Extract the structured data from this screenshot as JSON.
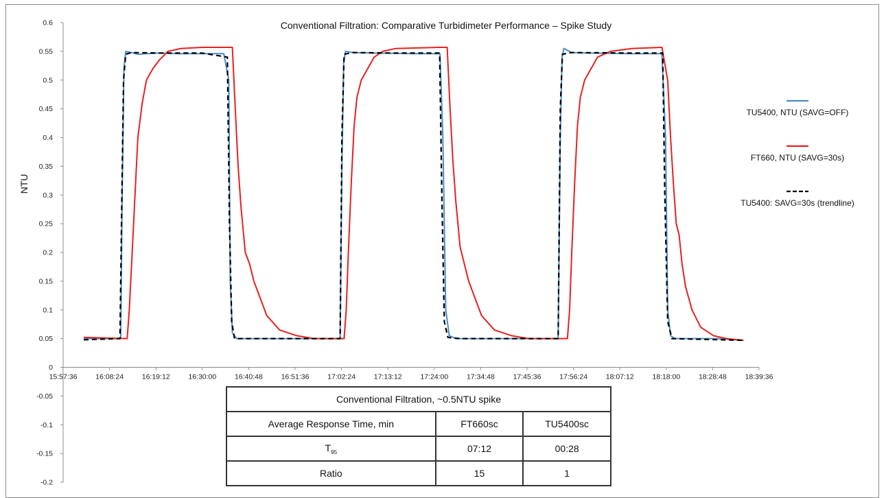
{
  "chart_data": {
    "type": "line",
    "title": "Conventional Filtration: Comparative Turbidimeter Performance  – Spike Study",
    "xlabel": "",
    "ylabel": "NTU",
    "ylim": [
      -0.2,
      0.6
    ],
    "yticks": [
      -0.2,
      -0.15,
      -0.1,
      -0.05,
      0,
      0.05,
      0.1,
      0.15,
      0.2,
      0.25,
      0.3,
      0.35,
      0.4,
      0.45,
      0.5,
      0.55,
      0.6
    ],
    "ytick_labels": [
      "-0.2",
      "-0.15",
      "-0.1",
      "-0.05",
      "0",
      "0.05",
      "0.1",
      "0.15",
      "0.2",
      "0.25",
      "0.3",
      "0.35",
      "0.4",
      "0.45",
      "0.5",
      "0.55",
      "0.6"
    ],
    "xtick_labels": [
      "15:57:36",
      "16:08:24",
      "16:19:12",
      "16:30:00",
      "16:40:48",
      "16:51:36",
      "17:02:24",
      "17:13:12",
      "17:24:00",
      "17:34:48",
      "17:45:36",
      "17:56:24",
      "18:07:12",
      "18:18:00",
      "18:28:48",
      "18:39:36"
    ],
    "grid": false,
    "legend_position": "right",
    "series": [
      {
        "name": "TU5400, NTU (SAVG=OFF)",
        "color": "#4a8cc8",
        "style": "solid",
        "x": [
          "16:02:24",
          "16:11:00",
          "16:11:20",
          "16:11:45",
          "16:12:10",
          "16:13:30",
          "16:15:00",
          "16:17:00",
          "16:20:00",
          "16:25:00",
          "16:30:00",
          "16:35:00",
          "16:36:10",
          "16:36:30",
          "16:37:00",
          "16:38:00",
          "16:40:00",
          "16:50:00",
          "17:00:00",
          "17:02:05",
          "17:02:30",
          "17:02:55",
          "17:03:20",
          "17:05:00",
          "17:10:00",
          "17:20:00",
          "17:25:20",
          "17:26:00",
          "17:26:40",
          "17:27:30",
          "17:29:00",
          "17:35:00",
          "17:45:00",
          "17:52:50",
          "17:53:20",
          "17:53:45",
          "17:54:10",
          "17:56:00",
          "18:00:00",
          "18:10:00",
          "18:17:00",
          "18:17:50",
          "18:18:20",
          "18:19:00",
          "18:20:00",
          "18:30:00",
          "18:36:00"
        ],
        "y": [
          0.05,
          0.05,
          0.3,
          0.52,
          0.55,
          0.548,
          0.545,
          0.546,
          0.547,
          0.546,
          0.546,
          0.546,
          0.5,
          0.15,
          0.06,
          0.05,
          0.05,
          0.05,
          0.05,
          0.05,
          0.35,
          0.53,
          0.55,
          0.548,
          0.547,
          0.546,
          0.546,
          0.4,
          0.1,
          0.055,
          0.05,
          0.05,
          0.05,
          0.05,
          0.4,
          0.54,
          0.555,
          0.548,
          0.547,
          0.546,
          0.546,
          0.4,
          0.1,
          0.055,
          0.05,
          0.05,
          0.047
        ]
      },
      {
        "name": "FT660, NTU (SAVG=30s)",
        "color": "#e8201f",
        "style": "solid",
        "x": [
          "16:02:24",
          "16:12:30",
          "16:13:00",
          "16:13:40",
          "16:14:20",
          "16:15:00",
          "16:16:00",
          "16:17:00",
          "16:18:30",
          "16:20:00",
          "16:22:00",
          "16:25:00",
          "16:30:00",
          "16:35:00",
          "16:37:00",
          "16:37:40",
          "16:38:20",
          "16:39:00",
          "16:40:00",
          "16:41:00",
          "16:42:00",
          "16:43:30",
          "16:45:00",
          "16:48:00",
          "16:52:00",
          "16:56:00",
          "17:00:00",
          "17:03:00",
          "17:03:30",
          "17:04:00",
          "17:04:40",
          "17:05:20",
          "17:06:00",
          "17:07:00",
          "17:08:30",
          "17:10:00",
          "17:12:00",
          "17:15:00",
          "17:20:00",
          "17:25:00",
          "17:27:00",
          "17:27:40",
          "17:28:20",
          "17:29:00",
          "17:30:00",
          "17:31:00",
          "17:32:00",
          "17:33:30",
          "17:35:00",
          "17:38:00",
          "17:42:00",
          "17:46:00",
          "17:52:00",
          "17:55:00",
          "17:55:30",
          "17:56:00",
          "17:56:40",
          "17:57:20",
          "17:58:00",
          "17:59:00",
          "18:00:30",
          "18:02:00",
          "18:05:00",
          "18:10:00",
          "18:17:00",
          "18:18:20",
          "18:19:00",
          "18:19:40",
          "18:20:20",
          "18:21:00",
          "18:21:40",
          "18:22:30",
          "18:24:00",
          "18:26:00",
          "18:29:00",
          "18:32:00",
          "18:36:00"
        ],
        "y": [
          0.052,
          0.05,
          0.1,
          0.2,
          0.3,
          0.4,
          0.46,
          0.5,
          0.52,
          0.535,
          0.55,
          0.555,
          0.557,
          0.557,
          0.557,
          0.45,
          0.35,
          0.28,
          0.2,
          0.18,
          0.15,
          0.12,
          0.09,
          0.065,
          0.055,
          0.05,
          0.05,
          0.05,
          0.1,
          0.2,
          0.32,
          0.42,
          0.47,
          0.5,
          0.52,
          0.54,
          0.55,
          0.555,
          0.556,
          0.557,
          0.557,
          0.45,
          0.36,
          0.29,
          0.21,
          0.18,
          0.15,
          0.12,
          0.09,
          0.065,
          0.055,
          0.05,
          0.05,
          0.05,
          0.1,
          0.2,
          0.32,
          0.42,
          0.47,
          0.5,
          0.52,
          0.54,
          0.55,
          0.555,
          0.557,
          0.5,
          0.4,
          0.32,
          0.25,
          0.23,
          0.18,
          0.14,
          0.1,
          0.07,
          0.055,
          0.05,
          0.047
        ]
      },
      {
        "name": "TU5400: SAVG=30s (trendline)",
        "color": "#000000",
        "style": "dashed",
        "x": [
          "16:02:24",
          "16:10:50",
          "16:11:15",
          "16:11:40",
          "16:12:10",
          "16:13:30",
          "16:20:00",
          "16:30:00",
          "16:35:50",
          "16:36:20",
          "16:36:50",
          "16:37:30",
          "16:40:00",
          "17:00:00",
          "17:02:05",
          "17:02:30",
          "17:03:00",
          "17:05:00",
          "17:15:00",
          "17:25:15",
          "17:25:45",
          "17:26:20",
          "17:27:10",
          "17:30:00",
          "17:45:00",
          "17:52:50",
          "17:53:20",
          "17:53:50",
          "17:56:00",
          "18:10:00",
          "18:17:10",
          "18:17:40",
          "18:18:20",
          "18:19:20",
          "18:25:00",
          "18:36:00"
        ],
        "y": [
          0.048,
          0.05,
          0.28,
          0.5,
          0.545,
          0.548,
          0.547,
          0.547,
          0.54,
          0.25,
          0.08,
          0.05,
          0.05,
          0.05,
          0.05,
          0.4,
          0.545,
          0.548,
          0.547,
          0.547,
          0.3,
          0.08,
          0.052,
          0.05,
          0.05,
          0.05,
          0.45,
          0.545,
          0.548,
          0.547,
          0.547,
          0.3,
          0.08,
          0.05,
          0.049,
          0.047
        ]
      }
    ]
  },
  "table": {
    "title": "Conventional Filtration, ~0.5NTU spike",
    "header": {
      "label": "Average Response Time, min",
      "col1": "FT660sc",
      "col2": "TU5400sc"
    },
    "row_t95": {
      "label_main": "T",
      "label_sub": "95",
      "col1": "07:12",
      "col2": "00:28"
    },
    "row_ratio": {
      "label": "Ratio",
      "col1": "15",
      "col2": "1"
    }
  }
}
